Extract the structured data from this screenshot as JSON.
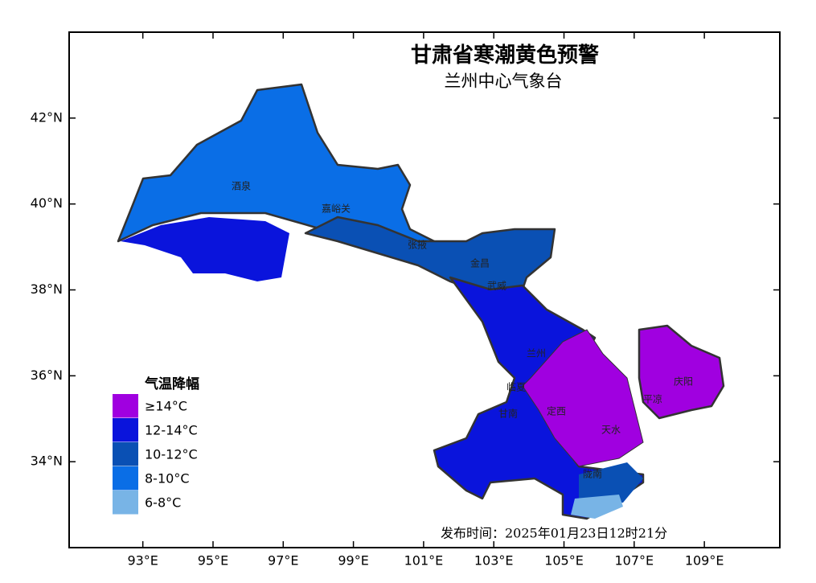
{
  "map": {
    "title": "甘肃省寒潮黄色预警",
    "subtitle": "兰州中心气象台",
    "xlim": [
      90.9,
      111.15
    ],
    "ylim": [
      32.0,
      44.0
    ],
    "xticks": [
      {
        "value": 93,
        "label": "93°E"
      },
      {
        "value": 95,
        "label": "95°E"
      },
      {
        "value": 97,
        "label": "97°E"
      },
      {
        "value": 99,
        "label": "99°E"
      },
      {
        "value": 101,
        "label": "101°E"
      },
      {
        "value": 103,
        "label": "103°E"
      },
      {
        "value": 105,
        "label": "105°E"
      },
      {
        "value": 107,
        "label": "107°E"
      },
      {
        "value": 109,
        "label": "109°E"
      }
    ],
    "yticks": [
      {
        "value": 34,
        "label": "34°N"
      },
      {
        "value": 36,
        "label": "36°N"
      },
      {
        "value": 38,
        "label": "38°N"
      },
      {
        "value": 40,
        "label": "40°N"
      },
      {
        "value": 42,
        "label": "42°N"
      }
    ],
    "legend": {
      "title": "气温降幅",
      "items": [
        {
          "label": "≥14°C",
          "color": "#a000e0"
        },
        {
          "label": "12-14°C",
          "color": "#0a14dc"
        },
        {
          "label": "10-12°C",
          "color": "#0a50b4"
        },
        {
          "label": "8-10°C",
          "color": "#0a6ee6"
        },
        {
          "label": "6-8°C",
          "color": "#78b4e6"
        }
      ]
    },
    "places": [
      "酒泉",
      "嘉峪关",
      "张掖",
      "金昌",
      "武威",
      "兰州",
      "临夏",
      "甘南",
      "定西",
      "天水",
      "陇南",
      "庆阳",
      "平凉"
    ],
    "issued": "发布时间：2025年01月23日12时21分"
  }
}
